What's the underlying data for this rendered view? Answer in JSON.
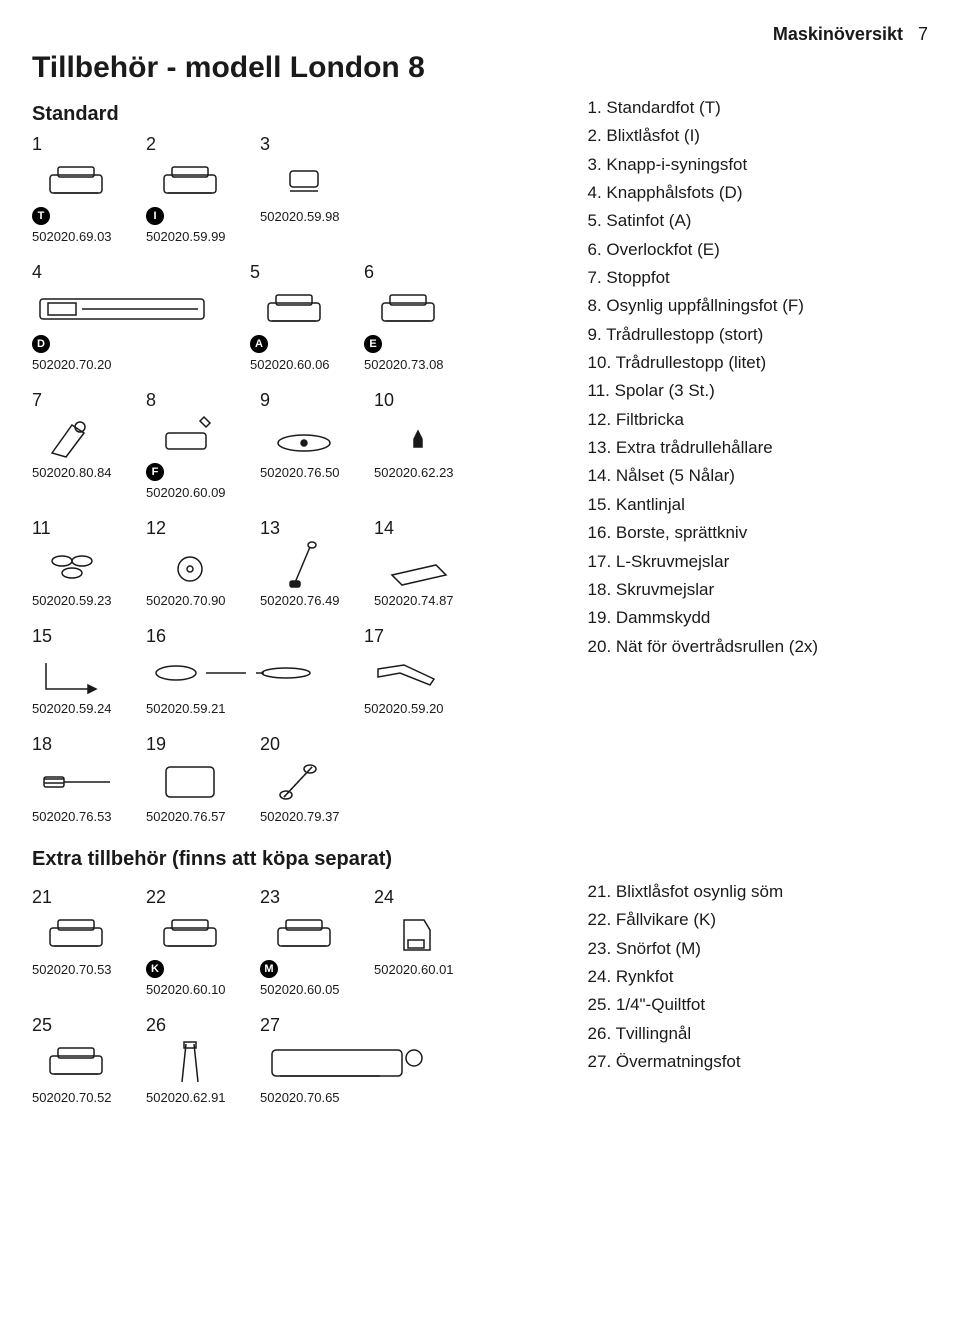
{
  "page_header": {
    "section": "Maskinöversikt",
    "page_number": "7"
  },
  "title": "Tillbehör - modell London 8",
  "standard_heading": "Standard",
  "extra_heading": "Extra tillbehör (finns att köpa separat)",
  "standard_items": [
    {
      "n": "1",
      "badge": "T",
      "part": "502020.69.03"
    },
    {
      "n": "2",
      "badge": "I",
      "part": "502020.59.99"
    },
    {
      "n": "3",
      "part": "502020.59.98"
    },
    {
      "n": "4",
      "badge": "D",
      "part": "502020.70.20",
      "wide": true
    },
    {
      "n": "5",
      "badge": "A",
      "part": "502020.60.06"
    },
    {
      "n": "6",
      "badge": "E",
      "part": "502020.73.08"
    },
    {
      "n": "7",
      "part": "502020.80.84"
    },
    {
      "n": "8",
      "badge": "F",
      "part": "502020.60.09"
    },
    {
      "n": "9",
      "part": "502020.76.50"
    },
    {
      "n": "10",
      "part": "502020.62.23"
    },
    {
      "n": "11",
      "part": "502020.59.23"
    },
    {
      "n": "12",
      "part": "502020.70.90"
    },
    {
      "n": "13",
      "part": "502020.76.49"
    },
    {
      "n": "14",
      "part": "502020.74.87"
    },
    {
      "n": "15",
      "part": "502020.59.24"
    },
    {
      "n": "16",
      "part": "502020.59.21",
      "wide": true
    },
    {
      "n": "17",
      "part": "502020.59.20"
    },
    {
      "n": "18",
      "part": "502020.76.53"
    },
    {
      "n": "19",
      "part": "502020.76.57"
    },
    {
      "n": "20",
      "part": "502020.79.37"
    }
  ],
  "standard_legend": [
    "1. Standardfot (T)",
    "2. Blixtlåsfot (I)",
    "3. Knapp-i-syningsfot",
    "4. Knapphålsfots (D)",
    "5. Satinfot (A)",
    "6. Overlockfot (E)",
    "7. Stoppfot",
    "8. Osynlig uppfållningsfot (F)",
    "9. Trådrullestopp (stort)",
    "10. Trådrullestopp (litet)",
    "11. Spolar (3 St.)",
    "12. Filtbricka",
    "13. Extra trådrullehållare",
    "14. Nålset (5 Nålar)",
    "15. Kantlinjal",
    "16. Borste, sprättkniv",
    "17. L-Skruvmejslar",
    "18. Skruvmejslar",
    "19. Dammskydd",
    "20. Nät för övertrådsrullen (2x)"
  ],
  "extra_items": [
    {
      "n": "21",
      "part": "502020.70.53"
    },
    {
      "n": "22",
      "badge": "K",
      "part": "502020.60.10"
    },
    {
      "n": "23",
      "badge": "M",
      "part": "502020.60.05"
    },
    {
      "n": "24",
      "part": "502020.60.01"
    },
    {
      "n": "25",
      "part": "502020.70.52"
    },
    {
      "n": "26",
      "part": "502020.62.91"
    },
    {
      "n": "27",
      "part": "502020.70.65",
      "wide": true
    }
  ],
  "extra_legend": [
    "21. Blixtlåsfot osynlig söm",
    "22. Fållvikare (K)",
    "23. Snörfot (M)",
    "24. Rynkfot",
    "25. 1/4\"-Quiltfot",
    "26. Tvillingnål",
    "27. Övermatningsfot"
  ],
  "style": {
    "background_color": "#ffffff",
    "text_color": "#1a1a1a",
    "title_fontsize_pt": 22,
    "heading_fontsize_pt": 15,
    "body_fontsize_pt": 13,
    "partnum_fontsize_pt": 10,
    "font_family": "Arial, Helvetica, sans-serif",
    "icon_stroke": "#1a1a1a",
    "badge_bg": "#000000",
    "badge_fg": "#ffffff"
  }
}
